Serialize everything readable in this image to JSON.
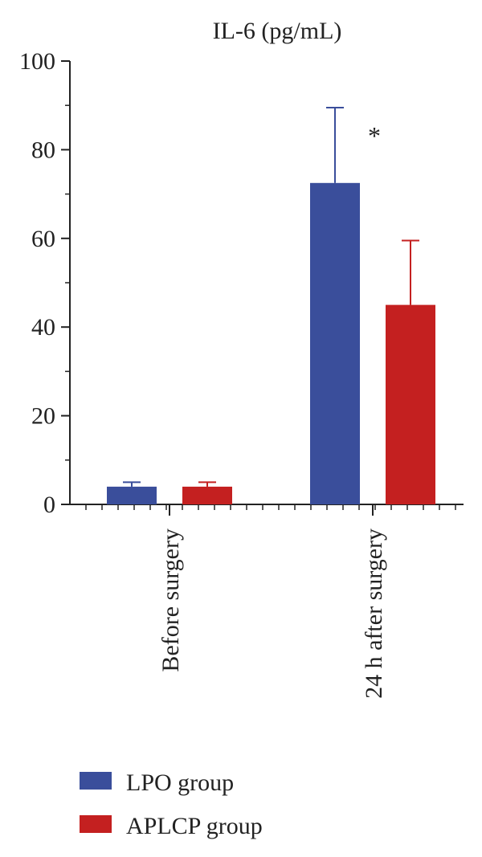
{
  "chart_data": {
    "type": "bar",
    "title": "IL-6 (pg/mL)",
    "xlabel": "",
    "ylabel": "",
    "ylim": [
      0,
      100
    ],
    "yticks": [
      0,
      20,
      40,
      60,
      80,
      100
    ],
    "categories": [
      "Before surgery",
      "24 h after surgery"
    ],
    "series": [
      {
        "name": "LPO group",
        "color": "#3a4e9b",
        "values": [
          4,
          72.5
        ],
        "errors": [
          1,
          17
        ]
      },
      {
        "name": "APLCP group",
        "color": "#c42020",
        "values": [
          4,
          45
        ],
        "errors": [
          1,
          14.5
        ]
      }
    ],
    "annotations": [
      {
        "text": "*",
        "category_index": 1
      }
    ],
    "legend_position": "bottom-left",
    "grid": false
  }
}
